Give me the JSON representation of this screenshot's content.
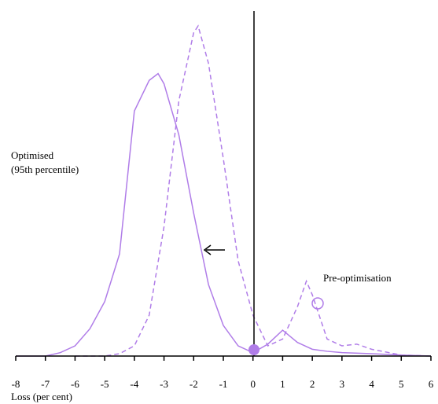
{
  "chart_data": {
    "type": "line",
    "x_label": "Loss (per cent)",
    "annotations": [
      "Optimised",
      "(95th percentile)",
      "Pre-optimisation"
    ],
    "xlim": [
      -8,
      6
    ],
    "xticks": [
      -8,
      -7,
      -6,
      -5,
      -4,
      -3,
      -2,
      -1,
      0,
      1,
      2,
      3,
      4,
      5,
      6
    ],
    "ylim": [
      0,
      100
    ],
    "series": [
      {
        "color": "#b07de8",
        "style": "solid",
        "x": [
          -8,
          -7,
          -6.5,
          -6,
          -5.5,
          -5,
          -4.5,
          -4,
          -3.5,
          -3.2,
          -3,
          -2.5,
          -2,
          -1.5,
          -1,
          -0.5,
          0,
          0.5,
          1,
          1.5,
          2,
          2.5,
          3,
          4,
          5,
          6
        ],
        "values": [
          0,
          0,
          1,
          3,
          8,
          16,
          30,
          72,
          81,
          83,
          80,
          65,
          42,
          21,
          9,
          3,
          1,
          3.5,
          7.6,
          4,
          2,
          1.4,
          1,
          0.7,
          0.3,
          0
        ]
      },
      {
        "color": "#b07de8",
        "style": "dashed",
        "x": [
          -6,
          -5,
          -4.5,
          -4,
          -3.5,
          -3,
          -2.5,
          -2,
          -1.85,
          -1.5,
          -1,
          -0.5,
          0,
          0.5,
          1,
          1.5,
          1.8,
          2,
          2.5,
          3,
          3.5,
          4,
          5,
          6
        ],
        "values": [
          0,
          0,
          0.7,
          3,
          12,
          38,
          75,
          95,
          97,
          86,
          58,
          28,
          12,
          3,
          5,
          14.5,
          22,
          18,
          5,
          3,
          3.5,
          2,
          0.3,
          0
        ]
      }
    ]
  }
}
